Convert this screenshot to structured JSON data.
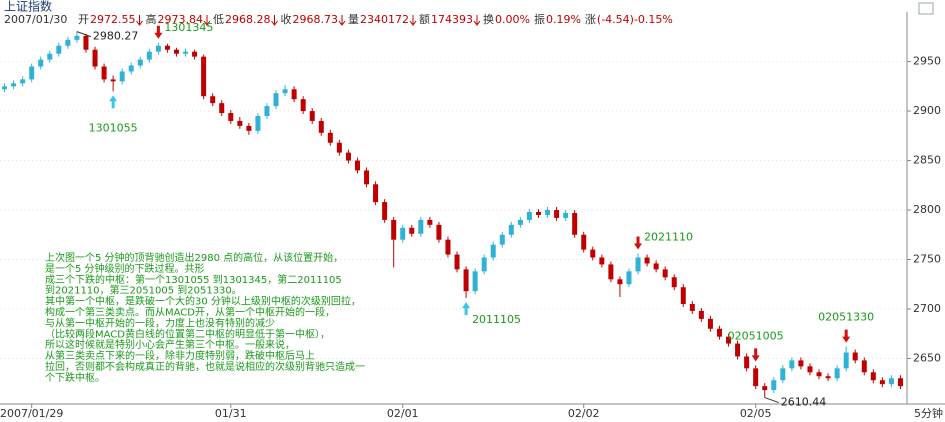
{
  "chart_data": {
    "type": "candlestick",
    "title": "上证指数",
    "header_date": "2007/01/30",
    "header_items": [
      {
        "label": "开",
        "value": "2972.55"
      },
      {
        "label": "高",
        "value": "2973.84"
      },
      {
        "label": "低",
        "value": "2968.28"
      },
      {
        "label": "收",
        "value": "2968.73"
      },
      {
        "label": "量",
        "value": "2340172"
      },
      {
        "label": "额",
        "value": "174393"
      },
      {
        "label": "换",
        "value": "0.00%"
      },
      {
        "label": "振",
        "value": "0.19%"
      },
      {
        "label": "涨",
        "value": "(-4.54)-0.15%"
      }
    ],
    "period": "5分钟",
    "up_color": "#2fb2d6",
    "down_color": "#c00000",
    "grid": true,
    "ylim": [
      2608,
      2990
    ],
    "yticks": [
      2650,
      2700,
      2750,
      2800,
      2850,
      2900,
      2950
    ],
    "categories": [
      null,
      null,
      null,
      "2007/01/29",
      null,
      null,
      null,
      null,
      null,
      null,
      null,
      null,
      null,
      null,
      null,
      null,
      null,
      null,
      null,
      null,
      null,
      null,
      null,
      null,
      null,
      "01/31",
      null,
      null,
      null,
      null,
      null,
      null,
      null,
      null,
      null,
      null,
      null,
      null,
      null,
      null,
      null,
      null,
      null,
      null,
      "02/01",
      null,
      null,
      null,
      null,
      null,
      null,
      null,
      null,
      null,
      null,
      null,
      null,
      null,
      null,
      null,
      null,
      null,
      null,
      null,
      "02/02",
      null,
      null,
      null,
      null,
      null,
      null,
      null,
      null,
      null,
      null,
      null,
      null,
      null,
      null,
      null,
      null,
      null,
      null,
      "02/05",
      null,
      null,
      null,
      null,
      null,
      null,
      null,
      null,
      null,
      null,
      null,
      null,
      null,
      null,
      null,
      null
    ],
    "ohlc": [
      [
        2922,
        2928,
        2919,
        2925
      ],
      [
        2925,
        2931,
        2922,
        2928
      ],
      [
        2928,
        2935,
        2925,
        2932
      ],
      [
        2932,
        2948,
        2929,
        2945
      ],
      [
        2945,
        2955,
        2942,
        2952
      ],
      [
        2952,
        2961,
        2949,
        2958
      ],
      [
        2958,
        2969,
        2955,
        2966
      ],
      [
        2966,
        2975,
        2963,
        2972
      ],
      [
        2972,
        2980.27,
        2969,
        2976
      ],
      [
        2976,
        2978,
        2959,
        2962
      ],
      [
        2962,
        2965,
        2942,
        2945
      ],
      [
        2945,
        2948,
        2929,
        2932
      ],
      [
        2932,
        2936,
        2920,
        2930
      ],
      [
        2930,
        2943,
        2927,
        2940
      ],
      [
        2940,
        2949,
        2937,
        2946
      ],
      [
        2946,
        2955,
        2943,
        2952
      ],
      [
        2952,
        2963,
        2949,
        2960
      ],
      [
        2960,
        2969,
        2957,
        2966
      ],
      [
        2966,
        2968,
        2959,
        2962
      ],
      [
        2962,
        2964,
        2955,
        2958
      ],
      [
        2958,
        2963,
        2955,
        2960
      ],
      [
        2960,
        2962,
        2952,
        2955
      ],
      [
        2955,
        2957,
        2912,
        2915
      ],
      [
        2915,
        2918,
        2905,
        2908
      ],
      [
        2908,
        2911,
        2895,
        2898
      ],
      [
        2898,
        2901,
        2887,
        2890
      ],
      [
        2890,
        2894,
        2882,
        2885
      ],
      [
        2885,
        2888,
        2876,
        2880
      ],
      [
        2880,
        2898,
        2877,
        2895
      ],
      [
        2895,
        2908,
        2892,
        2905
      ],
      [
        2905,
        2921,
        2902,
        2918
      ],
      [
        2918,
        2926,
        2915,
        2922
      ],
      [
        2922,
        2925,
        2909,
        2912
      ],
      [
        2912,
        2915,
        2897,
        2900
      ],
      [
        2900,
        2903,
        2887,
        2890
      ],
      [
        2890,
        2893,
        2875,
        2878
      ],
      [
        2878,
        2881,
        2865,
        2868
      ],
      [
        2868,
        2871,
        2855,
        2858
      ],
      [
        2858,
        2861,
        2847,
        2850
      ],
      [
        2850,
        2853,
        2837,
        2840
      ],
      [
        2840,
        2843,
        2823,
        2826
      ],
      [
        2826,
        2829,
        2805,
        2808
      ],
      [
        2808,
        2811,
        2787,
        2790
      ],
      [
        2790,
        2793,
        2742,
        2770
      ],
      [
        2770,
        2785,
        2767,
        2782
      ],
      [
        2782,
        2785,
        2773,
        2776
      ],
      [
        2776,
        2793,
        2773,
        2790
      ],
      [
        2790,
        2793,
        2782,
        2785
      ],
      [
        2785,
        2788,
        2767,
        2770
      ],
      [
        2770,
        2773,
        2752,
        2755
      ],
      [
        2755,
        2758,
        2737,
        2740
      ],
      [
        2740,
        2743,
        2711,
        2718
      ],
      [
        2718,
        2741,
        2715,
        2738
      ],
      [
        2738,
        2755,
        2735,
        2752
      ],
      [
        2752,
        2768,
        2749,
        2765
      ],
      [
        2765,
        2778,
        2762,
        2775
      ],
      [
        2775,
        2788,
        2772,
        2785
      ],
      [
        2785,
        2793,
        2782,
        2790
      ],
      [
        2790,
        2801,
        2787,
        2798
      ],
      [
        2798,
        2801,
        2792,
        2795
      ],
      [
        2795,
        2803,
        2792,
        2800
      ],
      [
        2800,
        2803,
        2789,
        2792
      ],
      [
        2792,
        2800,
        2789,
        2797
      ],
      [
        2797,
        2800,
        2772,
        2775
      ],
      [
        2775,
        2778,
        2757,
        2760
      ],
      [
        2760,
        2763,
        2749,
        2752
      ],
      [
        2752,
        2755,
        2742,
        2745
      ],
      [
        2745,
        2748,
        2727,
        2730
      ],
      [
        2730,
        2733,
        2712,
        2725
      ],
      [
        2725,
        2741,
        2722,
        2738
      ],
      [
        2738,
        2756,
        2735,
        2752
      ],
      [
        2752,
        2755,
        2743,
        2746
      ],
      [
        2746,
        2749,
        2737,
        2740
      ],
      [
        2740,
        2743,
        2729,
        2732
      ],
      [
        2732,
        2735,
        2719,
        2722
      ],
      [
        2722,
        2725,
        2702,
        2705
      ],
      [
        2705,
        2708,
        2695,
        2698
      ],
      [
        2698,
        2701,
        2687,
        2690
      ],
      [
        2690,
        2693,
        2677,
        2680
      ],
      [
        2680,
        2683,
        2669,
        2672
      ],
      [
        2672,
        2675,
        2662,
        2665
      ],
      [
        2665,
        2668,
        2649,
        2652
      ],
      [
        2652,
        2655,
        2637,
        2640
      ],
      [
        2640,
        2643,
        2619,
        2622
      ],
      [
        2622,
        2625,
        2610.44,
        2618
      ],
      [
        2618,
        2631,
        2615,
        2628
      ],
      [
        2628,
        2643,
        2625,
        2640
      ],
      [
        2640,
        2651,
        2637,
        2648
      ],
      [
        2648,
        2651,
        2639,
        2642
      ],
      [
        2642,
        2645,
        2633,
        2636
      ],
      [
        2636,
        2639,
        2629,
        2632
      ],
      [
        2632,
        2635,
        2627,
        2630
      ],
      [
        2630,
        2643,
        2627,
        2640
      ],
      [
        2640,
        2662,
        2637,
        2656
      ],
      [
        2656,
        2659,
        2645,
        2648
      ],
      [
        2648,
        2651,
        2633,
        2636
      ],
      [
        2636,
        2639,
        2625,
        2628
      ],
      [
        2628,
        2631,
        2621,
        2624
      ],
      [
        2624,
        2633,
        2621,
        2630
      ],
      [
        2630,
        2633,
        2619,
        2622
      ]
    ],
    "annotations": [
      "1301055",
      "1301345",
      "2011105",
      "2021110",
      "02051005",
      "02051330"
    ],
    "note": [
      "上次图一个5 分钟的顶背驰创造出2980 点的高位，从该位置开始，",
      "是一个5 分钟级别的下跌过程。共形",
      "成三个下跌的中枢：第一个1301055 到1301345，第二2011105",
      "到2021110，第三2051005 到2051330。",
      "其中第一个中枢，是跌破一个大的30 分钟以上级别中枢的次级别回拉，",
      "构成一个第三类卖点。而从MACD开，从第一个中枢开始的一段，",
      "与从第一中枢开始的一段，力度上也没有特别的减少",
      "（比较两段MACD黄白线的位置第二中枢的明显低于第一中枢），",
      "所以这时候就是特别小心会产生第三个中枢。一般来说，",
      "从第三类卖点下来的一段，除非力度特别弱，跌破中枢后马上",
      "拉回，否则都不会构成真正的背驰，也就是说相应的次级别背驰只造成一",
      "个下跌中枢。"
    ]
  }
}
